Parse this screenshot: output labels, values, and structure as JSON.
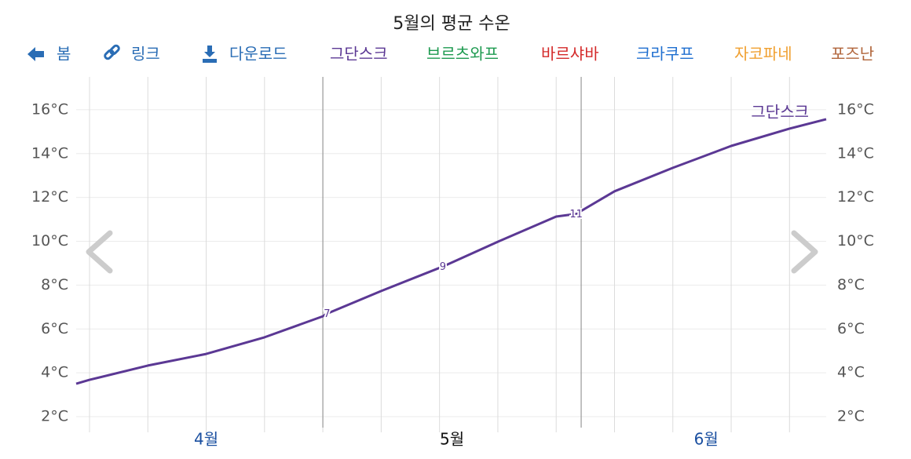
{
  "chart_data": {
    "type": "line",
    "title": "5월의 평균 수온",
    "nav": {
      "back": "봄",
      "link": "링크",
      "download": "다운로드",
      "cities": [
        {
          "name": "그단스크",
          "color": "#5b3894"
        },
        {
          "name": "브르츠와프",
          "color": "#1e9a50"
        },
        {
          "name": "바르샤바",
          "color": "#d42a2a"
        },
        {
          "name": "크라쿠프",
          "color": "#1f6fd0"
        },
        {
          "name": "자코파네",
          "color": "#f0a030"
        },
        {
          "name": "포즈난",
          "color": "#b0643a"
        }
      ]
    },
    "months": [
      {
        "label": "4월",
        "x": 14,
        "color": "#1a4fa0"
      },
      {
        "label": "5월",
        "x": 43.5,
        "color": "#111111"
      },
      {
        "label": "6월",
        "x": 74,
        "color": "#1a4fa0"
      }
    ],
    "month_bounds": [
      28,
      59
    ],
    "xlim": [
      -1.6,
      88.4
    ],
    "xticks": [
      0,
      7,
      14,
      21,
      28,
      35,
      42,
      49,
      56,
      63,
      70,
      77,
      84
    ],
    "ylim": [
      1.5,
      17.5
    ],
    "yticks": [
      {
        "value": 2,
        "label": "2°C"
      },
      {
        "value": 4,
        "label": "4°C"
      },
      {
        "value": 6,
        "label": "6°C"
      },
      {
        "value": 8,
        "label": "8°C"
      },
      {
        "value": 10,
        "label": "10°C"
      },
      {
        "value": 12,
        "label": "12°C"
      },
      {
        "value": 14,
        "label": "14°C"
      },
      {
        "value": 16,
        "label": "16°C"
      }
    ],
    "grid": true,
    "series": [
      {
        "name": "그단스크",
        "color": "#5b3894",
        "x": [
          -1.6,
          0,
          7,
          14,
          21,
          28,
          28.5,
          35,
          42.4,
          49,
          56,
          58.4,
          63,
          70,
          77,
          84,
          88.4
        ],
        "values": [
          3.5,
          3.68,
          4.33,
          4.86,
          5.62,
          6.58,
          6.7,
          7.73,
          8.85,
          9.98,
          11.13,
          11.25,
          12.28,
          13.35,
          14.35,
          15.14,
          15.57
        ],
        "value_labels": [
          null,
          null,
          null,
          null,
          null,
          null,
          "7",
          null,
          "9",
          null,
          null,
          "11",
          null,
          null,
          null,
          null,
          null
        ]
      }
    ]
  }
}
